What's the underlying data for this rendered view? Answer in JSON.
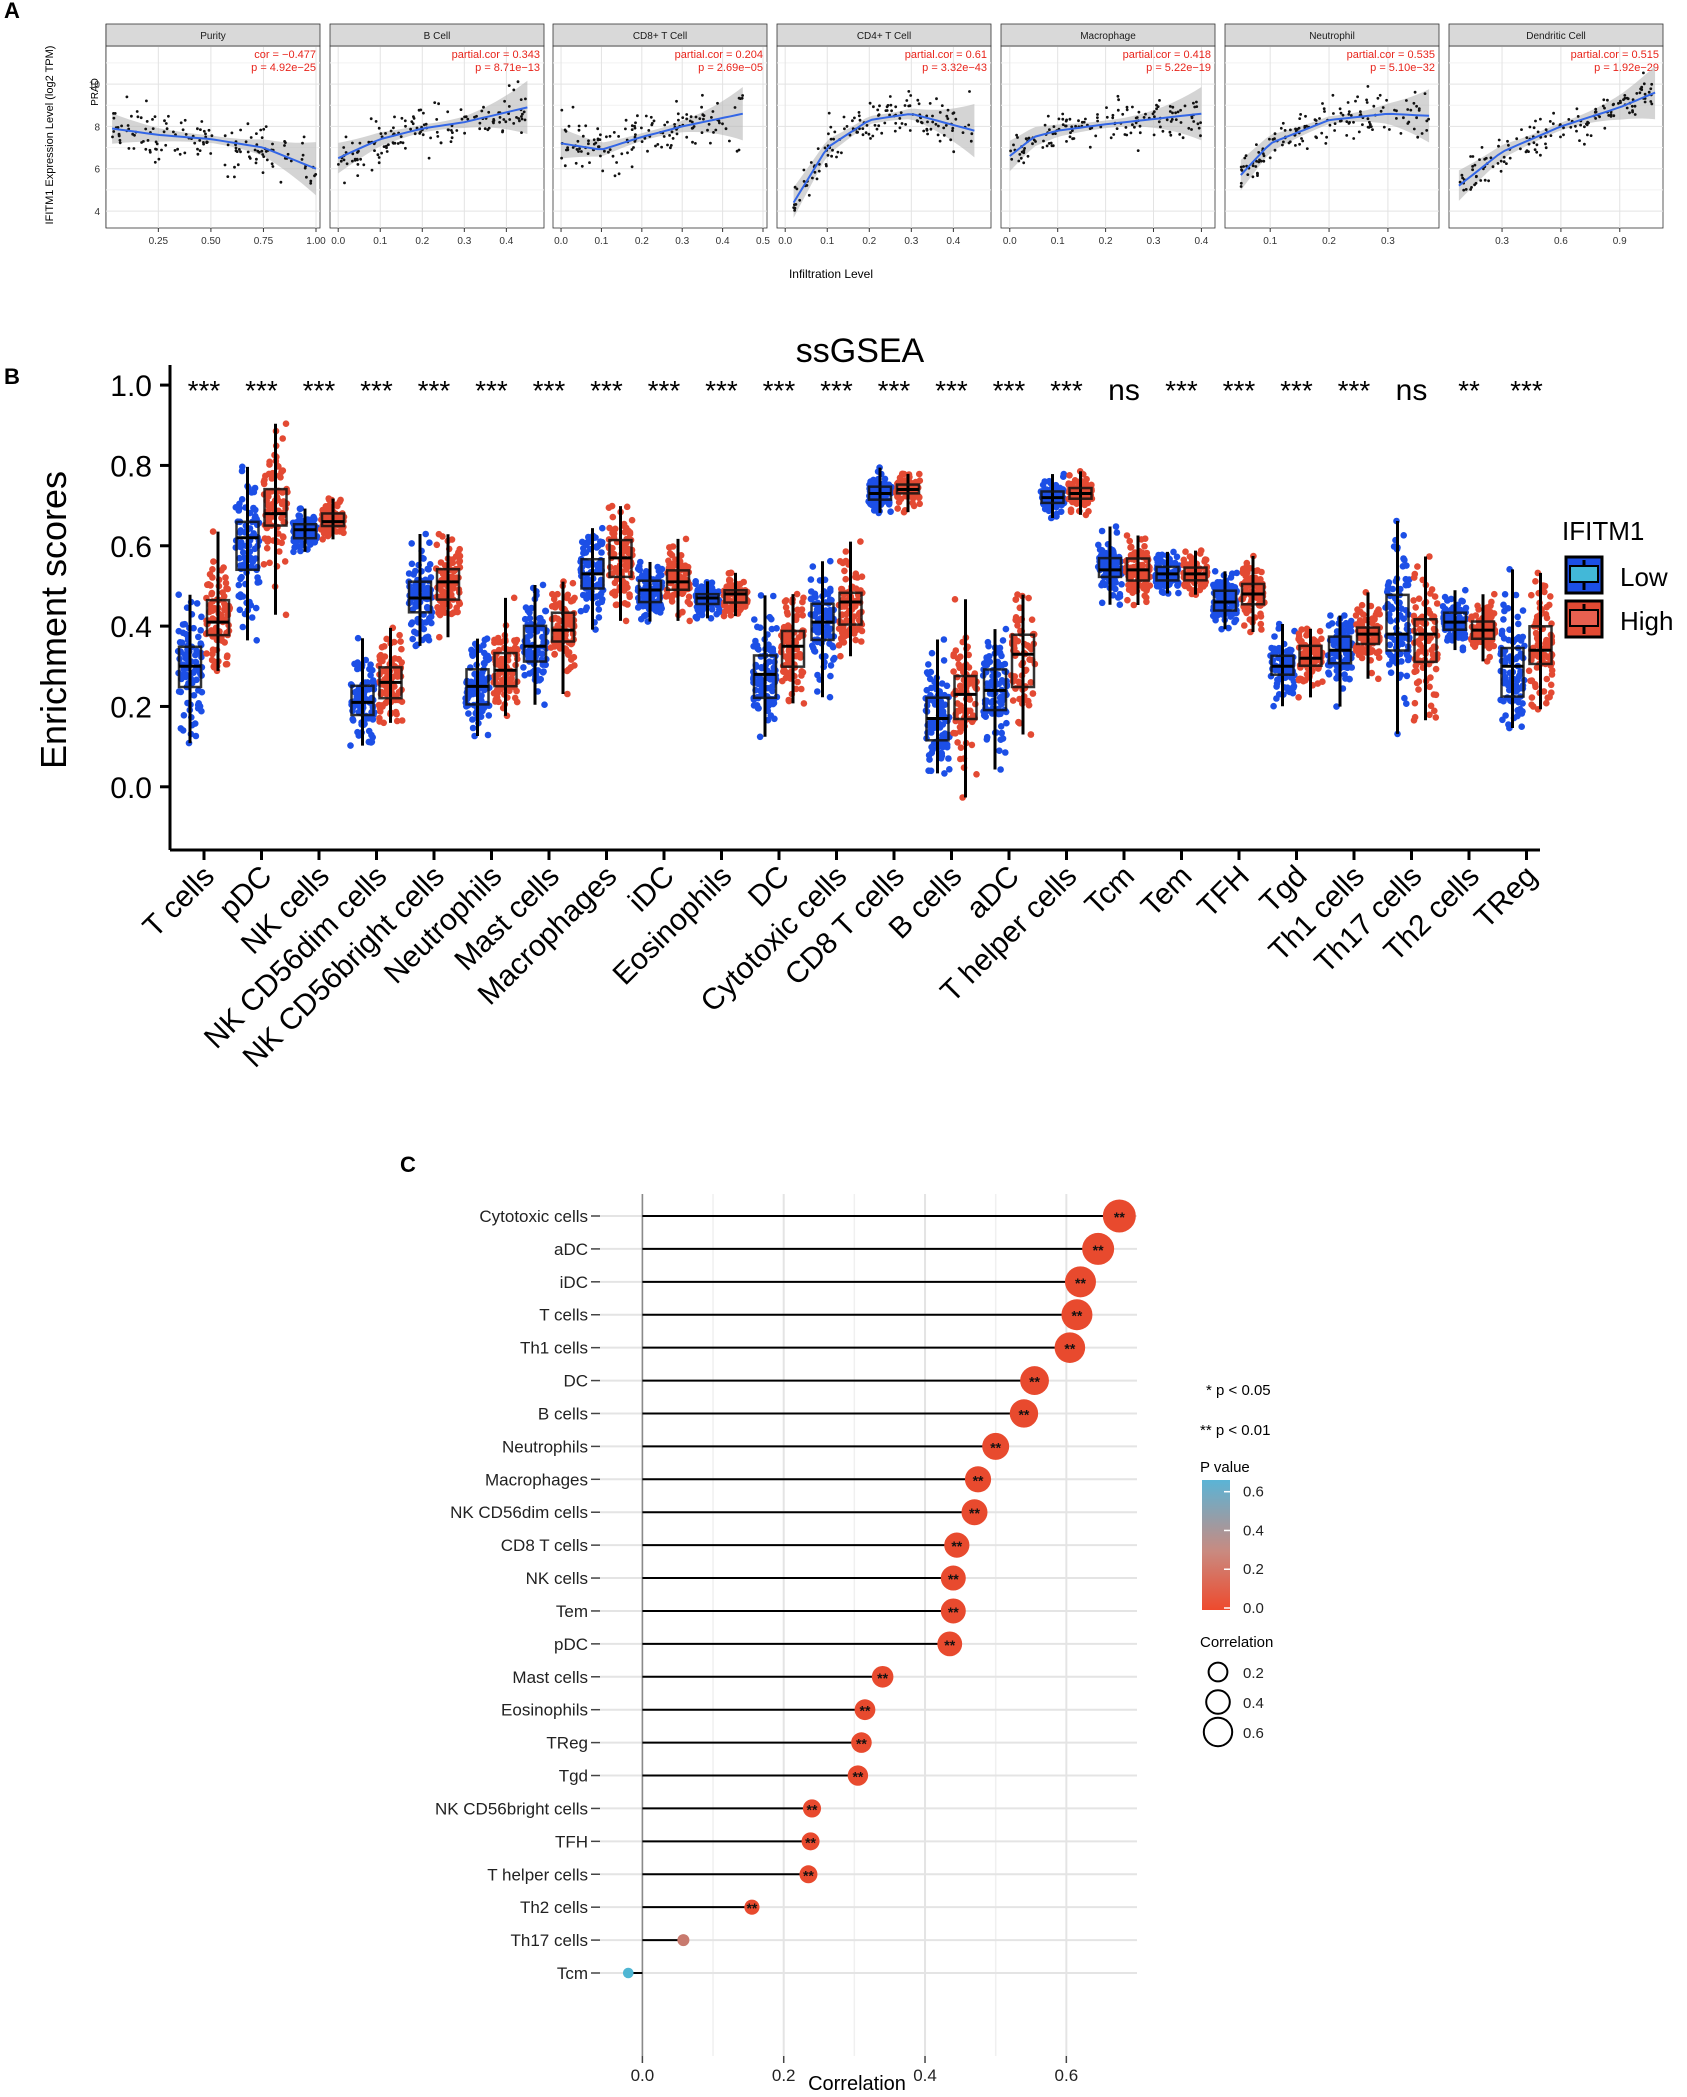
{
  "panel_labels": {
    "a": "A",
    "b": "B",
    "c": "C"
  },
  "chart_data": [
    {
      "type": "scatter",
      "panel": "A",
      "ylabel": "IFITM1 Expression Level (log2 TPM)",
      "xlabel": "Infiltration Level",
      "row_label": "PRAD",
      "y_ticks": [
        "4",
        "6",
        "8",
        "10"
      ],
      "ylim": [
        3.2,
        11.8
      ],
      "facets": [
        {
          "name": "Purity",
          "stat1": "cor = −0.477",
          "stat2": "p = 4.92e−25",
          "xlim": [
            0.02,
            1.0
          ],
          "ticks": [
            0.25,
            0.5,
            0.75,
            1.0
          ],
          "tick_labels": [
            "0.25",
            "0.50",
            "0.75",
            "1.00"
          ],
          "trend": [
            [
              0.03,
              7.9
            ],
            [
              0.25,
              7.6
            ],
            [
              0.5,
              7.4
            ],
            [
              0.75,
              7.0
            ],
            [
              1.0,
              6.0
            ]
          ],
          "slope": -2.0,
          "spread": 1.0
        },
        {
          "name": "B Cell",
          "stat1": "partial.cor = 0.343",
          "stat2": "p = 8.71e−13",
          "xlim": [
            -0.01,
            0.48
          ],
          "ticks": [
            0.0,
            0.1,
            0.2,
            0.3,
            0.4
          ],
          "tick_labels": [
            "0.0",
            "0.1",
            "0.2",
            "0.3",
            "0.4"
          ],
          "trend": [
            [
              0.0,
              6.5
            ],
            [
              0.1,
              7.4
            ],
            [
              0.2,
              7.9
            ],
            [
              0.3,
              8.2
            ],
            [
              0.45,
              8.9
            ]
          ],
          "slope": 5.0,
          "spread": 1.0
        },
        {
          "name": "CD8+ T Cell",
          "stat1": "partial.cor = 0.204",
          "stat2": "p = 2.69e−05",
          "xlim": [
            -0.01,
            0.5
          ],
          "ticks": [
            0.0,
            0.1,
            0.2,
            0.3,
            0.4,
            0.5
          ],
          "tick_labels": [
            "0.0",
            "0.1",
            "0.2",
            "0.3",
            "0.4",
            "0.5"
          ],
          "trend": [
            [
              0.0,
              7.2
            ],
            [
              0.1,
              6.9
            ],
            [
              0.2,
              7.5
            ],
            [
              0.3,
              8.0
            ],
            [
              0.45,
              8.6
            ]
          ],
          "slope": 3.0,
          "spread": 1.1
        },
        {
          "name": "CD4+ T Cell",
          "stat1": "partial.cor = 0.61",
          "stat2": "p = 3.32e−43",
          "xlim": [
            -0.01,
            0.48
          ],
          "ticks": [
            0.0,
            0.1,
            0.2,
            0.3,
            0.4
          ],
          "tick_labels": [
            "0.0",
            "0.1",
            "0.2",
            "0.3",
            "0.4"
          ],
          "trend": [
            [
              0.02,
              4.4
            ],
            [
              0.1,
              7.0
            ],
            [
              0.2,
              8.3
            ],
            [
              0.3,
              8.6
            ],
            [
              0.45,
              7.8
            ]
          ],
          "slope": 10.0,
          "spread": 0.9
        },
        {
          "name": "Macrophage",
          "stat1": "partial.cor = 0.418",
          "stat2": "p = 5.22e−19",
          "xlim": [
            -0.01,
            0.42
          ],
          "ticks": [
            0.0,
            0.1,
            0.2,
            0.3,
            0.4
          ],
          "tick_labels": [
            "0.0",
            "0.1",
            "0.2",
            "0.3",
            "0.4"
          ],
          "trend": [
            [
              0.0,
              6.6
            ],
            [
              0.05,
              7.5
            ],
            [
              0.1,
              7.8
            ],
            [
              0.2,
              8.1
            ],
            [
              0.4,
              8.6
            ]
          ],
          "slope": 6.0,
          "spread": 0.9
        },
        {
          "name": "Neutrophil",
          "stat1": "partial.cor = 0.535",
          "stat2": "p = 5.10e−32",
          "xlim": [
            0.03,
            0.38
          ],
          "ticks": [
            0.1,
            0.2,
            0.3
          ],
          "tick_labels": [
            "0.1",
            "0.2",
            "0.3"
          ],
          "trend": [
            [
              0.05,
              5.7
            ],
            [
              0.1,
              7.2
            ],
            [
              0.2,
              8.3
            ],
            [
              0.3,
              8.6
            ],
            [
              0.37,
              8.5
            ]
          ],
          "slope": 15.0,
          "spread": 0.9
        },
        {
          "name": "Dendritic Cell",
          "stat1": "partial.cor = 0.515",
          "stat2": "p = 1.92e−29",
          "xlim": [
            0.05,
            1.1
          ],
          "ticks": [
            0.3,
            0.6,
            0.9
          ],
          "tick_labels": [
            "0.3",
            "0.6",
            "0.9"
          ],
          "trend": [
            [
              0.08,
              5.2
            ],
            [
              0.3,
              6.8
            ],
            [
              0.6,
              8.0
            ],
            [
              0.9,
              8.9
            ],
            [
              1.08,
              9.6
            ]
          ],
          "slope": 4.0,
          "spread": 0.9
        }
      ]
    },
    {
      "type": "box",
      "panel": "B",
      "title": "ssGSEA",
      "ylabel": "Enrichment scores",
      "ylim": [
        -0.12,
        1.05
      ],
      "y_ticks": [
        0.0,
        0.2,
        0.4,
        0.6,
        0.8,
        1.0
      ],
      "y_tick_labels": [
        "0.0",
        "0.2",
        "0.4",
        "0.6",
        "0.8",
        "1.0"
      ],
      "legend": {
        "title": "IFITM1",
        "entries": [
          "Low",
          "High"
        ],
        "colors": [
          "#1c4fe6",
          "#e34a33"
        ]
      },
      "categories": [
        "T cells",
        "pDC",
        "NK cells",
        "NK CD56dim cells",
        "NK CD56bright cells",
        "Neutrophils",
        "Mast cells",
        "Macrophages",
        "iDC",
        "Eosinophils",
        "DC",
        "Cytotoxic cells",
        "CD8 T cells",
        "B cells",
        "aDC",
        "T helper cells",
        "Tcm",
        "Tem",
        "TFH",
        "Tgd",
        "Th1 cells",
        "Th17 cells",
        "Th2 cells",
        "TReg"
      ],
      "significance": [
        "***",
        "***",
        "***",
        "***",
        "***",
        "***",
        "***",
        "***",
        "***",
        "***",
        "***",
        "***",
        "***",
        "***",
        "***",
        "***",
        "ns",
        "***",
        "***",
        "***",
        "***",
        "ns",
        "**",
        "***"
      ],
      "series": [
        {
          "name": "Low",
          "medians": [
            0.3,
            0.62,
            0.64,
            0.21,
            0.47,
            0.25,
            0.35,
            0.53,
            0.49,
            0.47,
            0.28,
            0.41,
            0.73,
            0.17,
            0.24,
            0.72,
            0.54,
            0.53,
            0.46,
            0.3,
            0.34,
            0.38,
            0.41,
            0.3
          ]
        },
        {
          "name": "High",
          "medians": [
            0.41,
            0.68,
            0.66,
            0.26,
            0.51,
            0.29,
            0.39,
            0.57,
            0.51,
            0.48,
            0.35,
            0.46,
            0.74,
            0.23,
            0.33,
            0.73,
            0.54,
            0.53,
            0.48,
            0.32,
            0.38,
            0.38,
            0.39,
            0.34
          ]
        }
      ],
      "spreads": [
        0.18,
        0.2,
        0.05,
        0.12,
        0.13,
        0.13,
        0.14,
        0.14,
        0.09,
        0.05,
        0.16,
        0.16,
        0.05,
        0.18,
        0.2,
        0.05,
        0.09,
        0.06,
        0.08,
        0.09,
        0.1,
        0.22,
        0.07,
        0.19
      ]
    },
    {
      "type": "lollipop",
      "panel": "C",
      "xlabel": "Correlation",
      "xlim": [
        -0.06,
        0.7
      ],
      "x_ticks": [
        0.0,
        0.2,
        0.4,
        0.6
      ],
      "x_tick_labels": [
        "0.0",
        "0.2",
        "0.4",
        "0.6"
      ],
      "categories": [
        "Cytotoxic cells",
        "aDC",
        "iDC",
        "T cells",
        "Th1 cells",
        "DC",
        "B cells",
        "Neutrophils",
        "Macrophages",
        "NK CD56dim cells",
        "CD8 T cells",
        "NK cells",
        "Tem",
        "pDC",
        "Mast cells",
        "Eosinophils",
        "TReg",
        "Tgd",
        "NK CD56bright cells",
        "TFH",
        "T helper cells",
        "Th2 cells",
        "Th17 cells",
        "Tcm"
      ],
      "correlation": [
        0.675,
        0.645,
        0.62,
        0.615,
        0.605,
        0.555,
        0.54,
        0.5,
        0.475,
        0.47,
        0.445,
        0.44,
        0.44,
        0.435,
        0.34,
        0.315,
        0.31,
        0.305,
        0.24,
        0.238,
        0.235,
        0.155,
        0.058,
        -0.02
      ],
      "p_values": [
        0.0,
        0.0,
        0.0,
        0.0,
        0.0,
        0.0,
        0.0,
        0.0,
        0.0,
        0.0,
        0.0,
        0.0,
        0.0,
        0.0,
        0.0,
        0.0,
        0.0,
        0.0,
        0.0,
        0.0,
        0.0,
        0.0,
        0.2,
        0.65
      ],
      "stars": [
        "**",
        "**",
        "**",
        "**",
        "**",
        "**",
        "**",
        "**",
        "**",
        "**",
        "**",
        "**",
        "**",
        "**",
        "**",
        "**",
        "**",
        "**",
        "**",
        "**",
        "**",
        "**",
        "",
        ""
      ],
      "sig_notes": [
        "* p < 0.05",
        "** p < 0.01"
      ],
      "pvalue_legend": {
        "title": "P value",
        "ticks": [
          0.6,
          0.4,
          0.2,
          0.0
        ],
        "tick_labels": [
          "0.6",
          "0.4",
          "0.2",
          "0.0"
        ],
        "colors": [
          "#5ab4d6",
          "#c98a80",
          "#ee4a2d"
        ]
      },
      "size_legend": {
        "title": "Correlation",
        "values": [
          0.2,
          0.4,
          0.6
        ],
        "labels": [
          "0.2",
          "0.4",
          "0.6"
        ]
      }
    }
  ]
}
